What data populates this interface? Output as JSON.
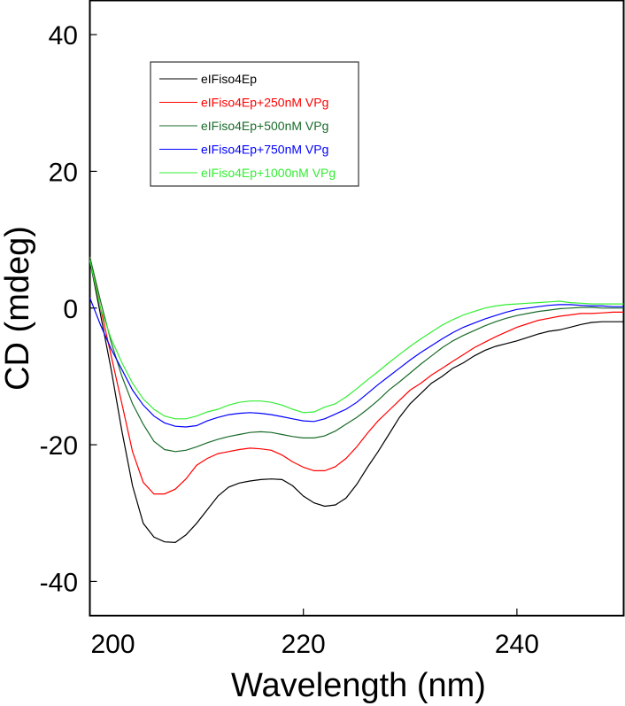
{
  "chart_data": {
    "type": "line",
    "title": "",
    "xlabel": "Wavelength (nm)",
    "ylabel": "CD (mdeg)",
    "xlim": [
      200,
      250
    ],
    "ylim": [
      -45,
      45
    ],
    "xticks": [
      200,
      220,
      240
    ],
    "yticks": [
      40,
      20,
      0,
      -20,
      -40
    ],
    "grid": false,
    "legend_position": "top-left",
    "x": [
      200,
      201,
      202,
      203,
      204,
      205,
      206,
      207,
      208,
      209,
      210,
      211,
      212,
      213,
      214,
      215,
      216,
      217,
      218,
      219,
      220,
      221,
      222,
      223,
      224,
      225,
      226,
      227,
      228,
      229,
      230,
      231,
      232,
      233,
      234,
      235,
      236,
      237,
      238,
      239,
      240,
      241,
      242,
      243,
      244,
      245,
      246,
      247,
      248,
      249,
      250
    ],
    "series": [
      {
        "name": "eIFiso4Ep",
        "color": "#000000",
        "values": [
          7,
          -1,
          -9,
          -18,
          -26,
          -31.5,
          -33.5,
          -34.2,
          -34.3,
          -33.2,
          -31.5,
          -29.5,
          -27.5,
          -26.2,
          -25.6,
          -25.3,
          -25.1,
          -25,
          -25.1,
          -26,
          -27.5,
          -28.5,
          -29,
          -28.8,
          -27.8,
          -25.8,
          -23.3,
          -21,
          -18.5,
          -16,
          -14,
          -12.5,
          -11,
          -10,
          -8.8,
          -8,
          -7,
          -6.2,
          -5.6,
          -5.2,
          -4.8,
          -4.3,
          -3.8,
          -3.4,
          -3.2,
          -2.8,
          -2.4,
          -2.1,
          -2,
          -2,
          -2
        ]
      },
      {
        "name": "eIFiso4Ep+250nM VPg",
        "color": "#ff0000",
        "values": [
          7.5,
          0,
          -7,
          -14,
          -21,
          -25.5,
          -27.2,
          -27.2,
          -26.5,
          -25,
          -23,
          -22,
          -21.3,
          -21,
          -20.7,
          -20.5,
          -20.6,
          -20.8,
          -21.5,
          -22.5,
          -23.3,
          -23.8,
          -23.8,
          -23.2,
          -22,
          -20.3,
          -18.3,
          -16.5,
          -15,
          -13.5,
          -12,
          -11,
          -9.8,
          -8.8,
          -7.8,
          -6.8,
          -5.8,
          -5,
          -4.2,
          -3.5,
          -2.8,
          -2.3,
          -1.8,
          -1.5,
          -1.2,
          -1,
          -0.8,
          -0.8,
          -0.7,
          -0.6,
          -0.6
        ]
      },
      {
        "name": "eIFiso4Ep+500nM VPg",
        "color": "#1a6b2a",
        "values": [
          7.5,
          1,
          -5,
          -10,
          -14,
          -17,
          -19.5,
          -20.7,
          -21,
          -20.8,
          -20.3,
          -19.7,
          -19.2,
          -18.8,
          -18.5,
          -18.2,
          -18.1,
          -18.2,
          -18.5,
          -18.8,
          -19,
          -19,
          -18.7,
          -18,
          -17,
          -16,
          -14.8,
          -13.5,
          -12,
          -10.8,
          -9.5,
          -8.2,
          -7,
          -5.8,
          -4.8,
          -4,
          -3.3,
          -2.6,
          -2,
          -1.5,
          -1.1,
          -0.8,
          -0.5,
          -0.3,
          -0.1,
          0,
          0.1,
          0.1,
          0,
          0,
          0
        ]
      },
      {
        "name": "eIFiso4Ep+750nM VPg",
        "color": "#0000ff",
        "values": [
          1.5,
          -2.5,
          -6,
          -9,
          -12,
          -14.2,
          -15.8,
          -16.8,
          -17.3,
          -17.4,
          -17.2,
          -16.5,
          -16,
          -15.6,
          -15.4,
          -15.3,
          -15.4,
          -15.6,
          -15.9,
          -16.2,
          -16.5,
          -16.6,
          -16.2,
          -15.5,
          -14.8,
          -13.8,
          -12.5,
          -11.2,
          -10,
          -8.8,
          -7.6,
          -6.5,
          -5.5,
          -4.5,
          -3.6,
          -2.8,
          -2.2,
          -1.6,
          -1.1,
          -0.6,
          -0.2,
          0,
          0.2,
          0.4,
          0.5,
          0.5,
          0.4,
          0.3,
          0.3,
          0.2,
          0.2
        ]
      },
      {
        "name": "eIFiso4Ep+1000nM VPg",
        "color": "#33ee33",
        "values": [
          7,
          0,
          -4.5,
          -8,
          -11,
          -13.3,
          -14.8,
          -15.8,
          -16.2,
          -16.2,
          -15.8,
          -15.2,
          -14.8,
          -14.2,
          -13.8,
          -13.6,
          -13.6,
          -13.8,
          -14.2,
          -14.8,
          -15.3,
          -15.2,
          -14.5,
          -14,
          -13,
          -11.8,
          -10.5,
          -9.3,
          -8,
          -6.8,
          -5.6,
          -4.5,
          -3.5,
          -2.5,
          -1.7,
          -1,
          -0.5,
          0,
          0.3,
          0.5,
          0.6,
          0.7,
          0.8,
          0.9,
          1,
          0.8,
          0.7,
          0.6,
          0.6,
          0.6,
          0.6
        ]
      }
    ]
  }
}
